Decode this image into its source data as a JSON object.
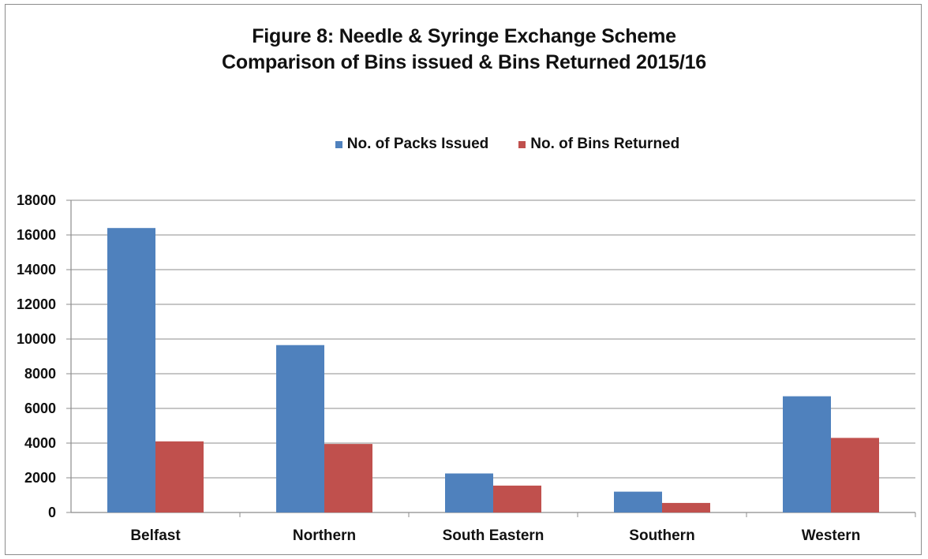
{
  "chart_data": {
    "type": "bar",
    "title": "Figure 8: Needle & Syringe Exchange Scheme",
    "subtitle": "Comparison of Bins issued & Bins Returned 2015/16",
    "xlabel": "",
    "ylabel": "",
    "categories": [
      "Belfast",
      "Northern",
      "South Eastern",
      "Southern",
      "Western"
    ],
    "series": [
      {
        "name": "No. of Packs Issued",
        "color": "#4f81bd",
        "values": [
          16400,
          9650,
          2250,
          1200,
          6700
        ]
      },
      {
        "name": "No. of Bins Returned",
        "color": "#c0504d",
        "values": [
          4100,
          3950,
          1550,
          550,
          4300
        ]
      }
    ],
    "ylim": [
      0,
      18000
    ],
    "yticks": [
      "0",
      "2000",
      "4000",
      "6000",
      "8000",
      "10000",
      "12000",
      "14000",
      "16000",
      "18000"
    ],
    "grid": true,
    "legend_position": "top"
  }
}
